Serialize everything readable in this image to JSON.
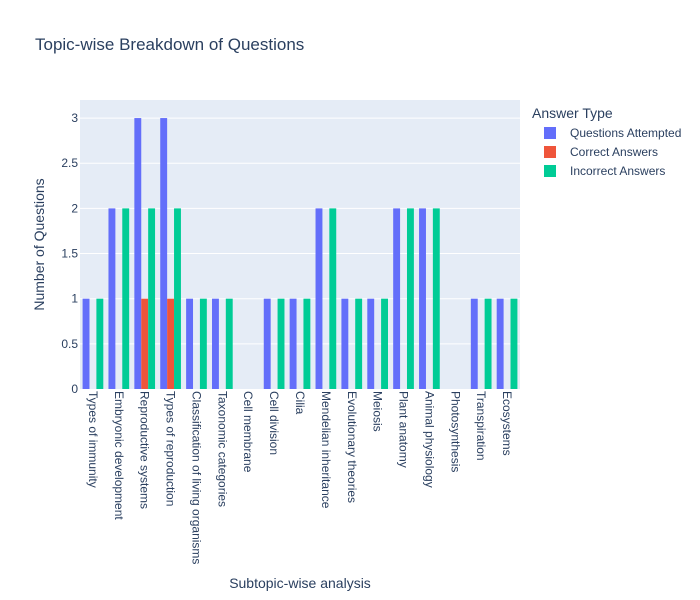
{
  "chart_data": {
    "type": "bar",
    "title": "Topic-wise Breakdown of Questions",
    "xlabel": "Subtopic-wise analysis",
    "ylabel": "Number of Questions",
    "ylim": [
      0,
      3.2
    ],
    "yticks": [
      "0",
      "0.5",
      "1",
      "1.5",
      "2",
      "2.5",
      "3"
    ],
    "grid": true,
    "legend_title": "Answer Type",
    "legend_position": "top-right",
    "categories": [
      "Types of immunity",
      "Embryonic development",
      "Reproductive systems",
      "Types of reproduction",
      "Classification of living organisms",
      "Taxonomic categories",
      "Cell membrane",
      "Cell division",
      "Cilia",
      "Mendelian inheritance",
      "Evolutionary theories",
      "Meiosis",
      "Plant anatomy",
      "Animal physiology",
      "Photosynthesis",
      "Transpiration",
      "Ecosystems"
    ],
    "series": [
      {
        "name": "Questions Attempted",
        "color": "#636efa",
        "values": [
          1,
          2,
          3,
          3,
          1,
          1,
          0,
          1,
          1,
          2,
          1,
          1,
          2,
          2,
          0,
          1,
          1
        ]
      },
      {
        "name": "Correct Answers",
        "color": "#ef553b",
        "values": [
          0,
          0,
          1,
          1,
          0,
          0,
          0,
          0,
          0,
          0,
          0,
          0,
          0,
          0,
          0,
          0,
          0
        ]
      },
      {
        "name": "Incorrect Answers",
        "color": "#00cc96",
        "values": [
          1,
          2,
          2,
          2,
          1,
          1,
          0,
          1,
          1,
          2,
          1,
          1,
          2,
          2,
          0,
          1,
          1
        ]
      }
    ]
  }
}
